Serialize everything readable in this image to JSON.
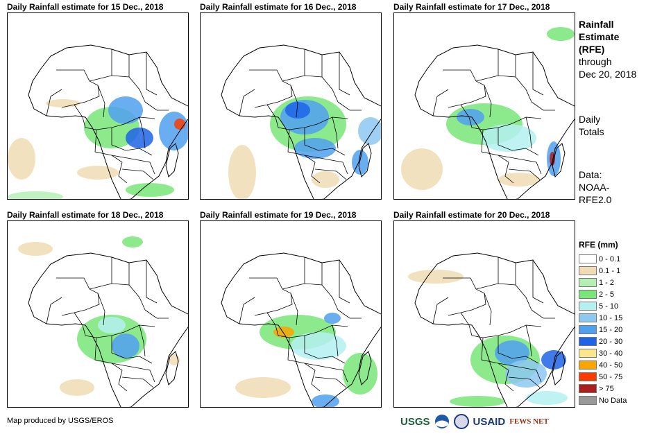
{
  "panels": [
    {
      "title": "Daily Rainfall estimate for 15 Dec., 2018"
    },
    {
      "title": "Daily Rainfall estimate for 16 Dec., 2018"
    },
    {
      "title": "Daily Rainfall estimate for 17 Dec., 2018"
    },
    {
      "title": "Daily Rainfall estimate for 18 Dec., 2018"
    },
    {
      "title": "Daily Rainfall estimate for 19 Dec., 2018"
    },
    {
      "title": "Daily Rainfall estimate for 20 Dec., 2018"
    }
  ],
  "side": {
    "title_l1": "Rainfall",
    "title_l2": "Estimate",
    "title_l3": "(RFE)",
    "through_l1": "through",
    "through_l2": "Dec 20, 2018",
    "daily_l1": "Daily",
    "daily_l2": "Totals",
    "data_l1": "Data:",
    "data_l2": "NOAA-",
    "data_l3": "RFE2.0"
  },
  "legend": {
    "title": "RFE (mm)",
    "items": [
      {
        "label": "0 - 0.1",
        "color": "#ffffff"
      },
      {
        "label": "0.1 - 1",
        "color": "#f0dcb4"
      },
      {
        "label": "1 - 2",
        "color": "#b4f0b4"
      },
      {
        "label": "2 - 5",
        "color": "#78e678"
      },
      {
        "label": "5 - 10",
        "color": "#b4f0f0"
      },
      {
        "label": "10 - 15",
        "color": "#8cc8f0"
      },
      {
        "label": "15 - 20",
        "color": "#50a0f0"
      },
      {
        "label": "20 - 30",
        "color": "#1e64e6"
      },
      {
        "label": "30 - 40",
        "color": "#fae68c"
      },
      {
        "label": "40 - 50",
        "color": "#faa500"
      },
      {
        "label": "50 - 75",
        "color": "#fa3c00"
      },
      {
        "label": "> 75",
        "color": "#aa1e1e"
      },
      {
        "label": "No Data",
        "color": "#999999"
      }
    ]
  },
  "credit": "Map produced by USGS/EROS",
  "logos": {
    "usgs": "USGS",
    "usaid": "USAID",
    "fews": "FEWS NET"
  }
}
